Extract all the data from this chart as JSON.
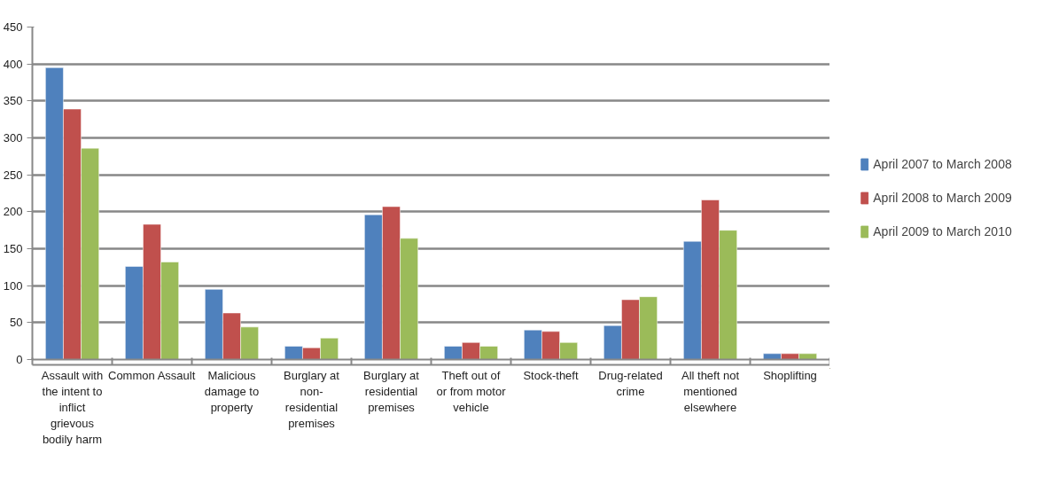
{
  "chart_data": {
    "type": "bar",
    "categories": [
      "Assault with the intent to inflict grievous bodily harm",
      "Common Assault",
      "Malicious damage to property",
      "Burglary at non-residential premises",
      "Burglary at residential premises",
      "Theft out of or from motor vehicle",
      "Stock-theft",
      "Drug-related crime",
      "All theft not mentioned elsewhere",
      "Shoplifting"
    ],
    "series": [
      {
        "name": "April 2007 to March 2008",
        "color": "#4f81bd",
        "values": [
          395,
          126,
          95,
          18,
          196,
          18,
          40,
          46,
          160,
          8
        ]
      },
      {
        "name": "April 2008 to March 2009",
        "color": "#c0504d",
        "values": [
          339,
          183,
          63,
          16,
          207,
          23,
          38,
          81,
          216,
          8
        ]
      },
      {
        "name": "April 2009 to March 2010",
        "color": "#9bbb59",
        "values": [
          286,
          132,
          44,
          29,
          164,
          18,
          23,
          85,
          175,
          8
        ]
      }
    ],
    "ylim": [
      0,
      450
    ],
    "yticks": [
      0,
      50,
      100,
      150,
      200,
      250,
      300,
      350,
      400,
      450
    ],
    "grid": "y",
    "legend": "right"
  }
}
